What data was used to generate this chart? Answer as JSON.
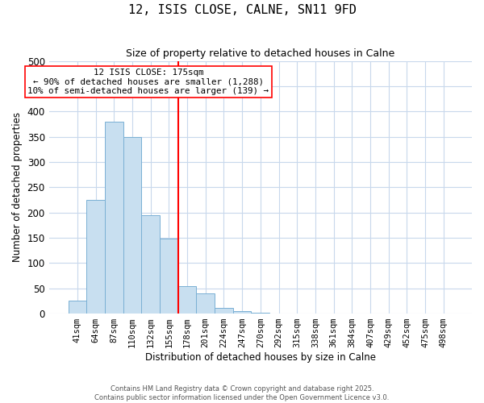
{
  "title": "12, ISIS CLOSE, CALNE, SN11 9FD",
  "subtitle": "Size of property relative to detached houses in Calne",
  "xlabel": "Distribution of detached houses by size in Calne",
  "ylabel": "Number of detached properties",
  "bar_color": "#c8dff0",
  "bar_edge_color": "#7ab0d4",
  "background_color": "#ffffff",
  "grid_color": "#c8d8ec",
  "categories": [
    "41sqm",
    "64sqm",
    "87sqm",
    "110sqm",
    "132sqm",
    "155sqm",
    "178sqm",
    "201sqm",
    "224sqm",
    "247sqm",
    "270sqm",
    "292sqm",
    "315sqm",
    "338sqm",
    "361sqm",
    "384sqm",
    "407sqm",
    "429sqm",
    "452sqm",
    "475sqm",
    "498sqm"
  ],
  "values": [
    25,
    225,
    380,
    350,
    195,
    148,
    55,
    40,
    12,
    5,
    2,
    0,
    0,
    0,
    0,
    0,
    0,
    0,
    0,
    0,
    0
  ],
  "red_line_index": 6,
  "annotation_line1": "12 ISIS CLOSE: 175sqm",
  "annotation_line2": "← 90% of detached houses are smaller (1,288)",
  "annotation_line3": "10% of semi-detached houses are larger (139) →",
  "ylim": [
    0,
    500
  ],
  "footnote1": "Contains HM Land Registry data © Crown copyright and database right 2025.",
  "footnote2": "Contains public sector information licensed under the Open Government Licence v3.0."
}
